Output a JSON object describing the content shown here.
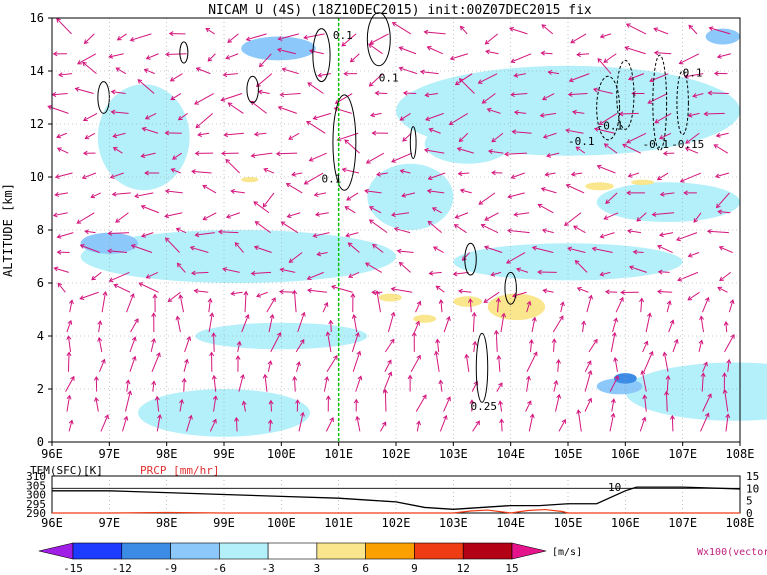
{
  "chart_data": [
    {
      "type": "heatmap",
      "title": "NICAM U (4S) (18Z10DEC2015) init:00Z07DEC2015 fix",
      "ylabel": "ALTITUDE [km]",
      "x_ticks": [
        "96E",
        "97E",
        "98E",
        "99E",
        "100E",
        "101E",
        "102E",
        "103E",
        "104E",
        "105E",
        "106E",
        "107E",
        "108E"
      ],
      "y_ticks": [
        "0",
        "2",
        "4",
        "6",
        "8",
        "10",
        "12",
        "14",
        "16"
      ],
      "xlim": [
        96,
        108
      ],
      "ylim": [
        0,
        16
      ],
      "grid": true,
      "reference_line_x": 101,
      "contour_labels": [
        {
          "text": "0.1",
          "x": 100.9,
          "y": 15.2
        },
        {
          "text": "0.1",
          "x": 101.7,
          "y": 13.6
        },
        {
          "text": "0.1",
          "x": 100.7,
          "y": 9.8
        },
        {
          "text": "-0.1",
          "x": 105.0,
          "y": 11.2
        },
        {
          "text": "-0.1",
          "x": 105.5,
          "y": 11.8
        },
        {
          "text": "-0.1",
          "x": 106.3,
          "y": 11.1
        },
        {
          "text": "-0.15",
          "x": 106.8,
          "y": 11.1
        },
        {
          "text": "0.1",
          "x": 107.0,
          "y": 13.8
        },
        {
          "text": "0.25",
          "x": 103.3,
          "y": 1.2
        }
      ],
      "fields": [
        {
          "color": "#b4f0fa",
          "value": -3,
          "x": 96.8,
          "y": 13.5,
          "w": 1.6,
          "h": 4.0
        },
        {
          "color": "#b4f0fa",
          "value": -3,
          "x": 102.0,
          "y": 14.2,
          "w": 6.0,
          "h": 3.4
        },
        {
          "color": "#b4f0fa",
          "value": -3,
          "x": 96.5,
          "y": 8.0,
          "w": 5.5,
          "h": 2.0
        },
        {
          "color": "#b4f0fa",
          "value": -3,
          "x": 101.5,
          "y": 10.5,
          "w": 1.5,
          "h": 2.5
        },
        {
          "color": "#b4f0fa",
          "value": -3,
          "x": 105.5,
          "y": 9.8,
          "w": 2.5,
          "h": 1.5
        },
        {
          "color": "#b4f0fa",
          "value": -3,
          "x": 103.0,
          "y": 7.5,
          "w": 4.0,
          "h": 1.4
        },
        {
          "color": "#b4f0fa",
          "value": -3,
          "x": 97.5,
          "y": 2.0,
          "w": 3.0,
          "h": 1.8
        },
        {
          "color": "#b4f0fa",
          "value": -3,
          "x": 106.0,
          "y": 3.0,
          "w": 3.8,
          "h": 2.2
        },
        {
          "color": "#b4f0fa",
          "value": -3,
          "x": 98.5,
          "y": 4.5,
          "w": 3.0,
          "h": 1.0
        },
        {
          "color": "#b4f0fa",
          "value": -3,
          "x": 102.5,
          "y": 12.0,
          "w": 1.5,
          "h": 1.5
        },
        {
          "color": "#8cc8fa",
          "value": -6,
          "x": 99.3,
          "y": 15.3,
          "w": 1.3,
          "h": 0.9
        },
        {
          "color": "#8cc8fa",
          "value": -6,
          "x": 96.5,
          "y": 7.9,
          "w": 1.0,
          "h": 0.8
        },
        {
          "color": "#8cc8fa",
          "value": -6,
          "x": 105.5,
          "y": 2.4,
          "w": 0.8,
          "h": 0.6
        },
        {
          "color": "#8cc8fa",
          "value": -6,
          "x": 107.4,
          "y": 15.6,
          "w": 0.6,
          "h": 0.6
        },
        {
          "color": "#3c8ce6",
          "value": -9,
          "x": 105.8,
          "y": 2.6,
          "w": 0.4,
          "h": 0.4
        },
        {
          "color": "#fae68c",
          "value": 3,
          "x": 103.6,
          "y": 5.6,
          "w": 1.0,
          "h": 1.0
        },
        {
          "color": "#fae68c",
          "value": 3,
          "x": 105.3,
          "y": 9.8,
          "w": 0.5,
          "h": 0.3
        },
        {
          "color": "#fae68c",
          "value": 3,
          "x": 101.7,
          "y": 5.6,
          "w": 0.4,
          "h": 0.3
        },
        {
          "color": "#fae68c",
          "value": 3,
          "x": 103.0,
          "y": 5.5,
          "w": 0.5,
          "h": 0.4
        },
        {
          "color": "#fae68c",
          "value": 3,
          "x": 102.3,
          "y": 4.8,
          "w": 0.4,
          "h": 0.3
        },
        {
          "color": "#fae68c",
          "value": 3,
          "x": 99.3,
          "y": 10.0,
          "w": 0.3,
          "h": 0.2
        },
        {
          "color": "#fae68c",
          "value": 3,
          "x": 106.1,
          "y": 9.9,
          "w": 0.4,
          "h": 0.2
        }
      ],
      "wind_vectors_legend": "Wx100(vector)"
    },
    {
      "type": "line",
      "series": [
        {
          "name": "TEM(SFC)[K]",
          "x": [
            96,
            97,
            98,
            99,
            100,
            101,
            101.5,
            102,
            102.5,
            103,
            103.5,
            104,
            104.5,
            105,
            105.5,
            106,
            106.2,
            107,
            108
          ],
          "y": [
            302,
            302,
            301,
            300,
            299,
            298,
            297,
            296,
            293,
            292,
            293,
            294,
            294,
            295,
            295,
            302,
            304,
            304,
            303
          ]
        },
        {
          "name": "PRCP [mm/hr]",
          "x": [
            96,
            97,
            98,
            99,
            100,
            101,
            102,
            103,
            103.3,
            103.6,
            104,
            104.3,
            104.6,
            104.9,
            105,
            106,
            108
          ],
          "y": [
            0,
            0,
            0.2,
            0,
            0,
            0,
            0,
            0,
            0.8,
            1.2,
            0,
            1.0,
            1.4,
            0.6,
            0,
            0,
            0
          ]
        }
      ],
      "left_axis": {
        "ticks": [
          "290",
          "295",
          "300",
          "305",
          "310"
        ],
        "ylim": [
          290,
          310
        ]
      },
      "right_axis": {
        "ticks": [
          "0",
          "5",
          "10",
          "15"
        ],
        "ylim": [
          0,
          15
        ]
      },
      "x_ticks": [
        "96E",
        "97E",
        "98E",
        "99E",
        "100E",
        "101E",
        "102E",
        "103E",
        "104E",
        "105E",
        "106E",
        "107E",
        "108E"
      ],
      "annotation": "10",
      "reference_line_y_right": 10
    }
  ],
  "colorbar": {
    "ticks": [
      "-15",
      "-12",
      "-9",
      "-6",
      "-3",
      "3",
      "6",
      "9",
      "12",
      "15"
    ],
    "colors": [
      "#a01ee6",
      "#1e3cff",
      "#3c8ce6",
      "#8cc8fa",
      "#b4f0fa",
      "#ffffff",
      "#fae68c",
      "#faa000",
      "#f03c14",
      "#b40014",
      "#e6148c"
    ],
    "unit": "[m/s]"
  },
  "legend_vector": "Wx100(vector)"
}
